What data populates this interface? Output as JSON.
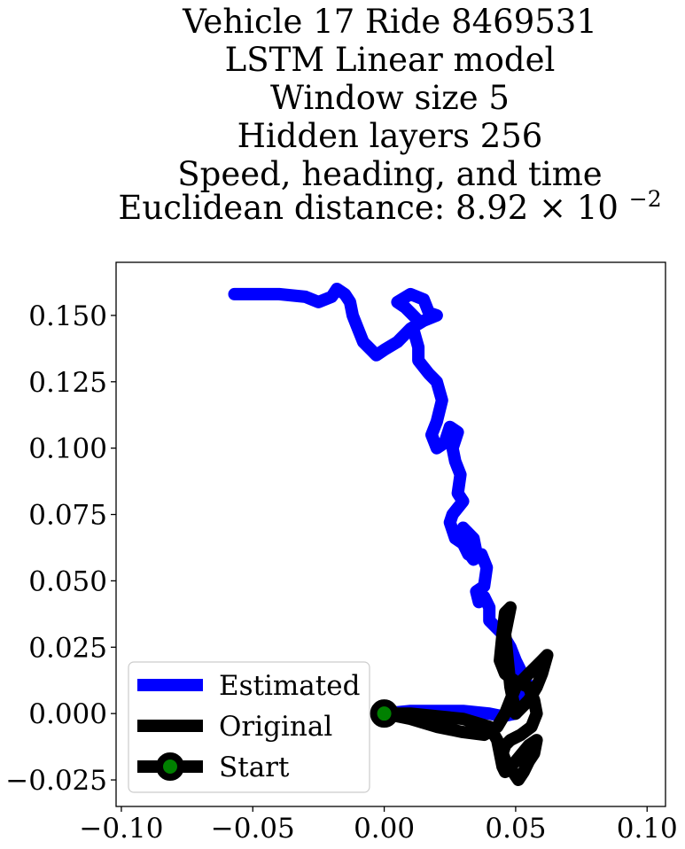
{
  "chart_data": {
    "type": "line",
    "title_lines": [
      "Vehicle 17 Ride 8469531",
      "LSTM Linear model",
      "Window size 5",
      "Hidden layers 256",
      "Speed, heading, and time"
    ],
    "title_last_prefix": "Euclidean distance: 8.92",
    "title_last_times": "×",
    "title_last_base": "10",
    "title_last_exp": "−2",
    "xlabel": "",
    "ylabel": "",
    "xlim": [
      -0.102,
      0.107
    ],
    "ylim": [
      -0.035,
      0.17
    ],
    "xticks": [
      -0.1,
      -0.05,
      0.0,
      0.05,
      0.1
    ],
    "xtick_labels": [
      "−0.10",
      "−0.05",
      "0.00",
      "0.05",
      "0.10"
    ],
    "yticks": [
      -0.025,
      0.0,
      0.025,
      0.05,
      0.075,
      0.1,
      0.125,
      0.15
    ],
    "ytick_labels": [
      "−0.025",
      "0.000",
      "0.025",
      "0.050",
      "0.075",
      "0.100",
      "0.125",
      "0.150"
    ],
    "grid": false,
    "legend_position": "lower-left",
    "series": [
      {
        "name": "Estimated",
        "color": "#0000ff",
        "x": [
          0.0,
          0.01,
          0.02,
          0.03,
          0.04,
          0.045,
          0.05,
          0.052,
          0.055,
          0.05,
          0.048,
          0.045,
          0.04,
          0.04,
          0.038,
          0.036,
          0.035,
          0.038,
          0.039,
          0.037,
          0.034,
          0.031,
          0.03,
          0.034,
          0.035,
          0.032,
          0.03,
          0.027,
          0.025,
          0.026,
          0.03,
          0.028,
          0.029,
          0.027,
          0.026,
          0.028,
          0.025,
          0.023,
          0.02,
          0.018,
          0.02,
          0.022,
          0.02,
          0.017,
          0.013,
          0.013,
          0.011,
          0.013,
          0.011,
          0.008,
          0.005,
          0.01,
          0.015,
          0.017,
          0.02,
          0.015,
          0.01,
          0.005,
          0.0,
          -0.003,
          -0.005,
          -0.008,
          -0.01,
          -0.012,
          -0.013,
          -0.015,
          -0.018,
          -0.02,
          -0.025,
          -0.03,
          -0.04,
          -0.05,
          -0.057
        ],
        "y": [
          0.0,
          0.001,
          0.001,
          0.001,
          0.0,
          -0.001,
          0.0,
          0.004,
          0.01,
          0.02,
          0.025,
          0.03,
          0.035,
          0.04,
          0.044,
          0.042,
          0.046,
          0.048,
          0.055,
          0.06,
          0.058,
          0.062,
          0.07,
          0.066,
          0.061,
          0.06,
          0.064,
          0.066,
          0.072,
          0.075,
          0.08,
          0.083,
          0.09,
          0.095,
          0.1,
          0.106,
          0.108,
          0.102,
          0.1,
          0.105,
          0.11,
          0.118,
          0.125,
          0.128,
          0.133,
          0.138,
          0.145,
          0.148,
          0.15,
          0.153,
          0.155,
          0.158,
          0.156,
          0.151,
          0.15,
          0.148,
          0.145,
          0.14,
          0.137,
          0.135,
          0.137,
          0.14,
          0.145,
          0.15,
          0.155,
          0.158,
          0.16,
          0.157,
          0.155,
          0.157,
          0.158,
          0.158,
          0.158
        ]
      },
      {
        "name": "Original",
        "color": "#000000",
        "x": [
          0.0,
          0.01,
          0.02,
          0.03,
          0.038,
          0.043,
          0.046,
          0.05,
          0.055,
          0.058,
          0.06,
          0.062,
          0.06,
          0.058,
          0.055,
          0.05,
          0.048,
          0.047,
          0.046,
          0.047,
          0.048,
          0.046,
          0.045,
          0.044,
          0.046,
          0.05,
          0.055,
          0.057,
          0.058,
          0.056,
          0.052,
          0.048,
          0.046,
          0.045,
          0.047,
          0.049,
          0.051,
          0.053,
          0.055,
          0.057,
          0.058,
          0.055,
          0.05,
          0.048,
          0.046,
          0.045,
          0.043,
          0.04,
          0.03,
          0.02,
          0.01,
          0.0
        ],
        "y": [
          0.0,
          -0.002,
          -0.005,
          -0.007,
          -0.008,
          -0.005,
          0.0,
          0.01,
          0.015,
          0.018,
          0.02,
          0.022,
          0.015,
          0.01,
          0.005,
          0.0,
          0.01,
          0.02,
          0.03,
          0.035,
          0.04,
          0.038,
          0.03,
          0.02,
          0.015,
          0.012,
          0.01,
          0.005,
          0.0,
          -0.005,
          -0.008,
          -0.01,
          -0.012,
          -0.015,
          -0.02,
          -0.022,
          -0.025,
          -0.022,
          -0.018,
          -0.015,
          -0.01,
          -0.012,
          -0.018,
          -0.02,
          -0.022,
          -0.02,
          -0.01,
          -0.005,
          -0.002,
          -0.001,
          0.0,
          0.0
        ]
      }
    ],
    "start_point": {
      "name": "Start",
      "x": 0.0,
      "y": 0.0,
      "edge_color": "#000000",
      "face_color": "#008000"
    }
  }
}
